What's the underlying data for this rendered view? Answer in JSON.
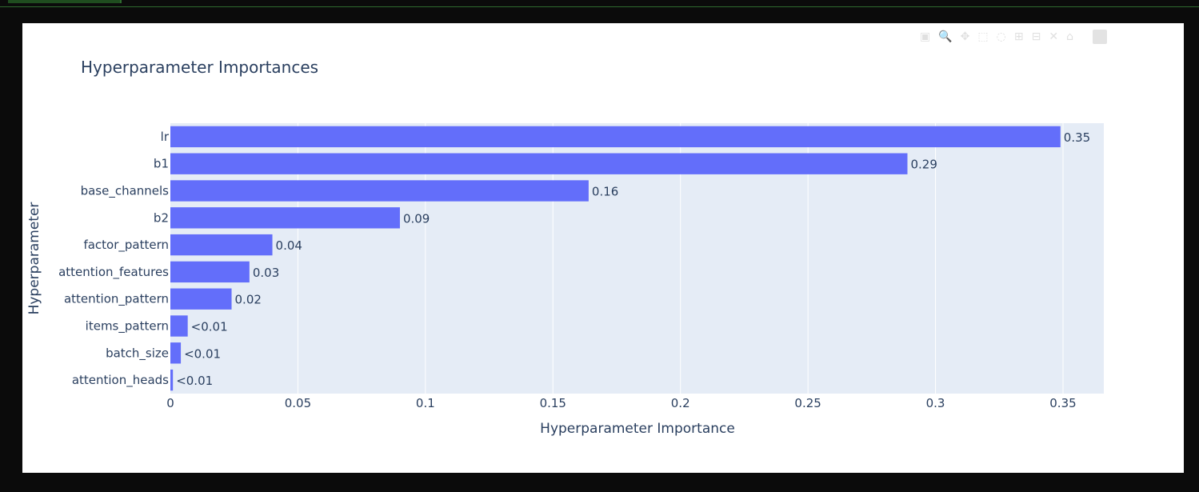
{
  "modebar": {
    "buttons": [
      {
        "icon": "camera-icon",
        "glyph": "▣"
      },
      {
        "icon": "zoom-icon",
        "glyph": "🔍"
      },
      {
        "icon": "pan-icon",
        "glyph": "✥"
      },
      {
        "icon": "box-select-icon",
        "glyph": "⬚"
      },
      {
        "icon": "lasso-icon",
        "glyph": "◌"
      },
      {
        "icon": "zoom-in-icon",
        "glyph": "⊞"
      },
      {
        "icon": "zoom-out-icon",
        "glyph": "⊟"
      },
      {
        "icon": "autoscale-icon",
        "glyph": "✕"
      },
      {
        "icon": "reset-axes-icon",
        "glyph": "⌂"
      }
    ],
    "logo_icon": "plotly-logo-icon"
  },
  "chart_data": {
    "type": "bar",
    "orientation": "horizontal",
    "title": "Hyperparameter Importances",
    "xlabel": "Hyperparameter Importance",
    "ylabel": "Hyperparameter",
    "xlim": [
      0,
      0.366
    ],
    "xticks": [
      "0",
      "0.05",
      "0.1",
      "0.15",
      "0.2",
      "0.25",
      "0.3",
      "0.35"
    ],
    "xtick_values": [
      0,
      0.05,
      0.1,
      0.15,
      0.2,
      0.25,
      0.3,
      0.35
    ],
    "grid": true,
    "bar_color": "#636efa",
    "plot_bg": "#e5ecf6",
    "categories": [
      "lr",
      "b1",
      "base_channels",
      "b2",
      "factor_pattern",
      "attention_features",
      "attention_pattern",
      "items_pattern",
      "batch_size",
      "attention_heads"
    ],
    "values": [
      0.349,
      0.289,
      0.164,
      0.09,
      0.04,
      0.031,
      0.024,
      0.0068,
      0.0041,
      0.001
    ],
    "data_labels": [
      "0.35",
      "0.29",
      "0.16",
      "0.09",
      "0.04",
      "0.03",
      "0.02",
      "<0.01",
      "<0.01",
      "<0.01"
    ]
  }
}
